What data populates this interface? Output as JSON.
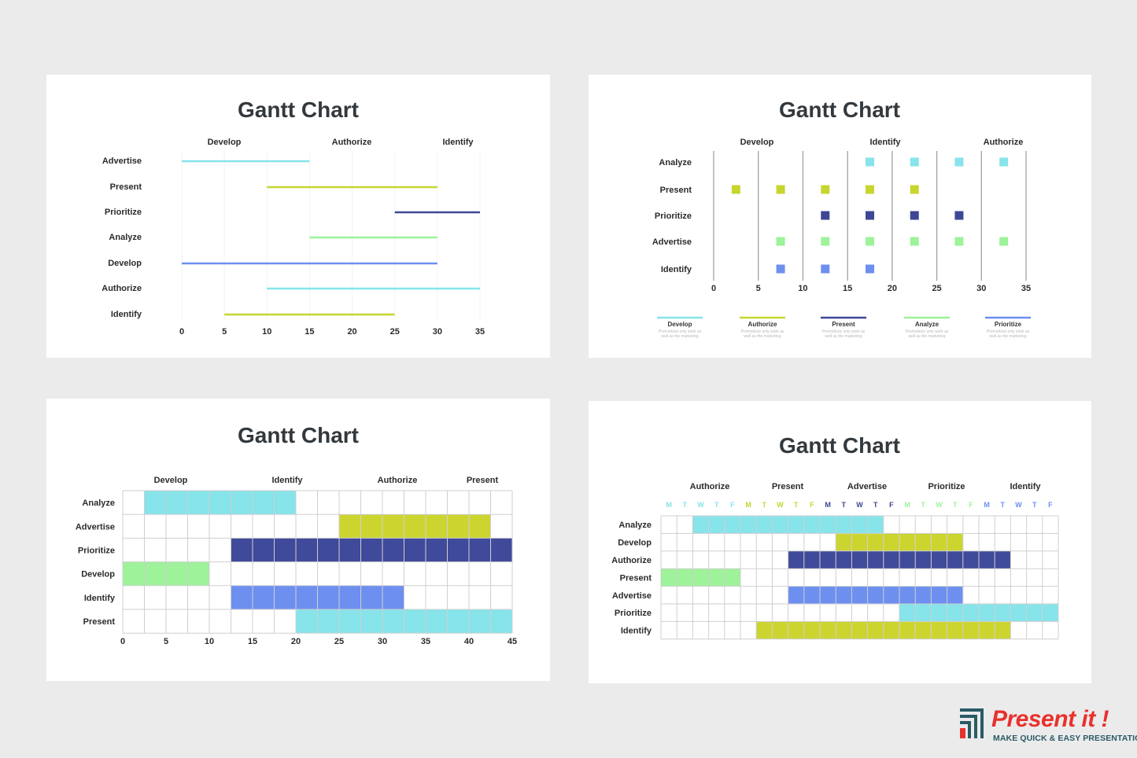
{
  "chart_data": [
    {
      "type": "line",
      "variant": "gantt-line",
      "title": "Gantt Chart",
      "top_labels": [
        "Develop",
        "Authorize",
        "Identify"
      ],
      "categories": [
        "Advertise",
        "Present",
        "Prioritize",
        "Analyze",
        "Develop",
        "Authorize",
        "Identify"
      ],
      "bars": [
        {
          "task": "Advertise",
          "start": 0,
          "end": 15,
          "color": "#86e4ea"
        },
        {
          "task": "Present",
          "start": 10,
          "end": 30,
          "color": "#c7d52e"
        },
        {
          "task": "Prioritize",
          "start": 25,
          "end": 35,
          "color": "#3e4795"
        },
        {
          "task": "Analyze",
          "start": 15,
          "end": 30,
          "color": "#9df29a"
        },
        {
          "task": "Develop",
          "start": 0,
          "end": 30,
          "color": "#6d8ff0"
        },
        {
          "task": "Authorize",
          "start": 10,
          "end": 35,
          "color": "#86e4ea"
        },
        {
          "task": "Identify",
          "start": 5,
          "end": 25,
          "color": "#c7d52e"
        }
      ],
      "xticks": [
        0,
        5,
        10,
        15,
        20,
        25,
        30,
        35
      ],
      "xlim": [
        0,
        35
      ]
    },
    {
      "type": "scatter",
      "variant": "gantt-markers",
      "title": "Gantt Chart",
      "top_labels": [
        "Develop",
        "Identify",
        "Authorize"
      ],
      "categories": [
        "Analyze",
        "Present",
        "Prioritize",
        "Advertise",
        "Identify"
      ],
      "series": [
        {
          "task": "Analyze",
          "x": [
            17.5,
            22.5,
            27.5,
            32.5
          ],
          "color": "#86e4ea"
        },
        {
          "task": "Present",
          "x": [
            2.5,
            7.5,
            12.5,
            17.5,
            22.5
          ],
          "color": "#c7d52e"
        },
        {
          "task": "Prioritize",
          "x": [
            12.5,
            17.5,
            22.5,
            27.5
          ],
          "color": "#3e4795"
        },
        {
          "task": "Advertise",
          "x": [
            7.5,
            12.5,
            17.5,
            22.5,
            27.5,
            32.5
          ],
          "color": "#9df29a"
        },
        {
          "task": "Identify",
          "x": [
            7.5,
            12.5,
            17.5
          ],
          "color": "#6d8ff0"
        }
      ],
      "xticks": [
        0,
        5,
        10,
        15,
        20,
        25,
        30,
        35
      ],
      "xlim": [
        0,
        35
      ],
      "legend": [
        {
          "name": "Develop",
          "color": "#86e4ea",
          "sub1": "Promotions only work as",
          "sub2": "well as the marketing"
        },
        {
          "name": "Authorize",
          "color": "#c7d52e",
          "sub1": "Promotions only work as",
          "sub2": "well as the marketing"
        },
        {
          "name": "Present",
          "color": "#3e4795",
          "sub1": "Promotions only work as",
          "sub2": "well as the marketing"
        },
        {
          "name": "Analyze",
          "color": "#9df29a",
          "sub1": "Promotions only work as",
          "sub2": "well as the marketing"
        },
        {
          "name": "Prioritize",
          "color": "#6d8ff0",
          "sub1": "Promotions only work as",
          "sub2": "well as the marketing"
        }
      ],
      "legend_position": "bottom"
    },
    {
      "type": "bar",
      "variant": "gantt-grid",
      "title": "Gantt Chart",
      "top_labels": [
        "Develop",
        "Identify",
        "Authorize",
        "Present"
      ],
      "categories": [
        "Analyze",
        "Advertise",
        "Prioritize",
        "Develop",
        "Identify",
        "Present"
      ],
      "bars": [
        {
          "task": "Analyze",
          "start": 2.5,
          "end": 20,
          "color": "#86e4ea"
        },
        {
          "task": "Advertise",
          "start": 25,
          "end": 42.5,
          "color": "#ccd530"
        },
        {
          "task": "Prioritize",
          "start": 12.5,
          "end": 45,
          "color": "#404a9a"
        },
        {
          "task": "Develop",
          "start": 0,
          "end": 10,
          "color": "#9df29a"
        },
        {
          "task": "Identify",
          "start": 12.5,
          "end": 32.5,
          "color": "#6d8ff0"
        },
        {
          "task": "Present",
          "start": 20,
          "end": 45,
          "color": "#86e4ea"
        }
      ],
      "xticks": [
        0,
        5,
        10,
        15,
        20,
        25,
        30,
        35,
        40,
        45
      ],
      "xlim": [
        0,
        45
      ],
      "grid": true
    },
    {
      "type": "bar",
      "variant": "gantt-grid-days",
      "title": "Gantt Chart",
      "top_labels": [
        "Authorize",
        "Present",
        "Advertise",
        "Prioritize",
        "Identify"
      ],
      "days": [
        "M",
        "T",
        "W",
        "T",
        "F",
        "M",
        "T",
        "W",
        "T",
        "F",
        "M",
        "T",
        "W",
        "T",
        "F",
        "M",
        "T",
        "W",
        "T",
        "F",
        "M",
        "T",
        "W",
        "T",
        "F"
      ],
      "day_colors": [
        "#86e4ea",
        "#86e4ea",
        "#86e4ea",
        "#86e4ea",
        "#86e4ea",
        "#c7d52e",
        "#c7d52e",
        "#c7d52e",
        "#c7d52e",
        "#c7d52e",
        "#3e4795",
        "#3e4795",
        "#3e4795",
        "#3e4795",
        "#3e4795",
        "#9df29a",
        "#9df29a",
        "#9df29a",
        "#9df29a",
        "#9df29a",
        "#6d8ff0",
        "#6d8ff0",
        "#6d8ff0",
        "#6d8ff0",
        "#6d8ff0"
      ],
      "categories": [
        "Analyze",
        "Develop",
        "Authorize",
        "Present",
        "Advertise",
        "Prioritize",
        "Identify"
      ],
      "bars": [
        {
          "task": "Analyze",
          "start": 2,
          "end": 14,
          "color": "#86e4ea"
        },
        {
          "task": "Develop",
          "start": 11,
          "end": 19,
          "color": "#ccd530"
        },
        {
          "task": "Authorize",
          "start": 8,
          "end": 22,
          "color": "#404a9a"
        },
        {
          "task": "Present",
          "start": 0,
          "end": 5,
          "color": "#9df29a"
        },
        {
          "task": "Advertise",
          "start": 8,
          "end": 19,
          "color": "#6d8ff0"
        },
        {
          "task": "Prioritize",
          "start": 15,
          "end": 25,
          "color": "#86e4ea"
        },
        {
          "task": "Identify",
          "start": 6,
          "end": 22,
          "color": "#ccd530"
        }
      ],
      "xlim": [
        0,
        25
      ],
      "grid": true
    }
  ],
  "brand": {
    "name": "Present it !",
    "tagline": "MAKE QUICK & EASY PRESENTATIONS",
    "color": "#e8312d",
    "tagline_color": "#2a5a66",
    "icon": "bar-logo-icon"
  }
}
